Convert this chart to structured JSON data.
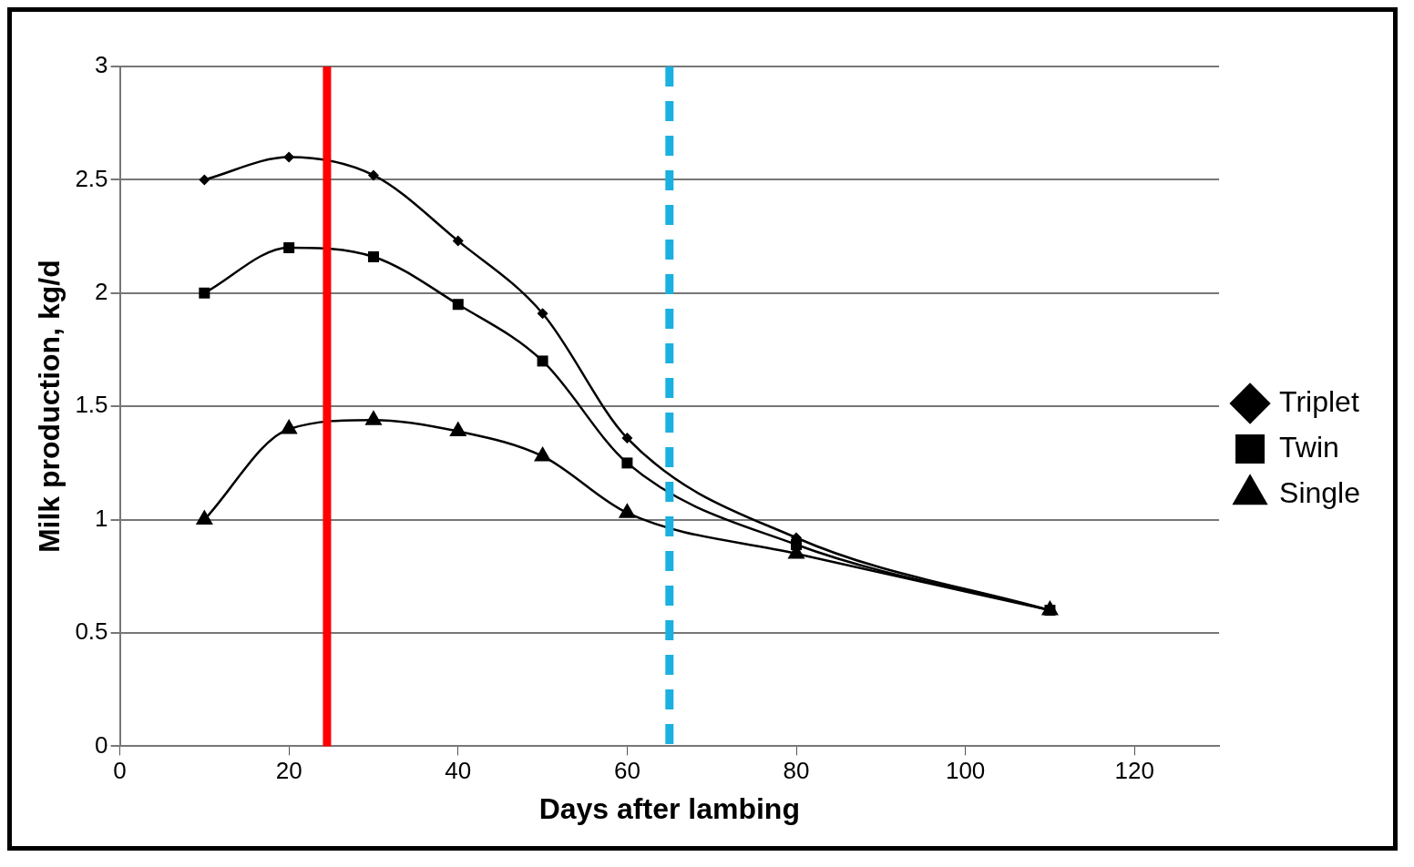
{
  "chart_data": {
    "type": "line",
    "xlabel": "Days after lambing",
    "ylabel": "Milk production, kg/d",
    "xlim": [
      0,
      130
    ],
    "xticks": [
      0,
      20,
      40,
      60,
      80,
      100,
      120
    ],
    "ylim": [
      0,
      3
    ],
    "yticks": [
      0,
      0.5,
      1,
      1.5,
      2,
      2.5,
      3
    ],
    "x": [
      10,
      20,
      30,
      40,
      50,
      60,
      80,
      110
    ],
    "series": [
      {
        "name": "Single",
        "color": "#000000",
        "marker": "triangle",
        "values": [
          1.0,
          1.4,
          1.44,
          1.39,
          1.28,
          1.03,
          0.85,
          0.6
        ]
      },
      {
        "name": "Twin",
        "color": "#000000",
        "marker": "square",
        "values": [
          2.0,
          2.2,
          2.16,
          1.95,
          1.7,
          1.25,
          0.89,
          0.6
        ]
      },
      {
        "name": "Triplet",
        "color": "#000000",
        "marker": "diamond",
        "values": [
          2.5,
          2.6,
          2.52,
          2.23,
          1.91,
          1.36,
          0.92,
          0.6
        ]
      }
    ],
    "ref_lines": [
      {
        "axis": "x",
        "value": 24.5,
        "color": "#ff0000",
        "line_style": "solid"
      },
      {
        "axis": "x",
        "value": 65,
        "color": "#1ab0e0",
        "line_style": "dashed"
      }
    ],
    "grid": "y",
    "legend": "right",
    "line_style": "solid"
  }
}
